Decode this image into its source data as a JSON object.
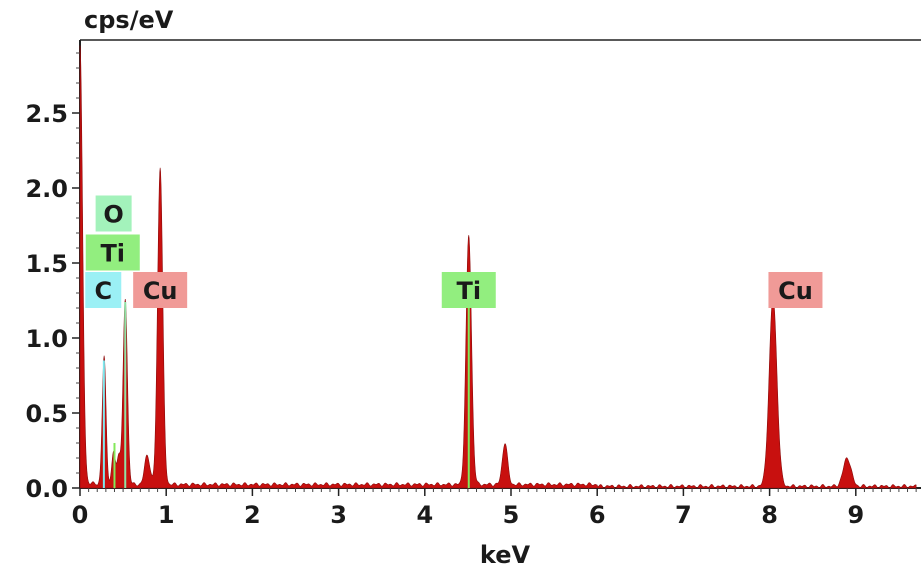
{
  "chart_data": {
    "type": "area",
    "title": "",
    "ylabel": "cps/eV",
    "xlabel": "keV",
    "xlim": [
      0,
      9.7
    ],
    "ylim": [
      0,
      2.95
    ],
    "xticks": [
      0,
      1,
      2,
      3,
      4,
      5,
      6,
      7,
      8,
      9
    ],
    "xtick_labels": [
      "0",
      "1",
      "2",
      "3",
      "4",
      "5",
      "6",
      "7",
      "8",
      "9"
    ],
    "yticks": [
      0,
      0.5,
      1.0,
      1.5,
      2.0,
      2.5
    ],
    "ytick_labels": [
      "0.0",
      "0.5",
      "1.0",
      "1.5",
      "2.0",
      "2.5"
    ],
    "spectrum_color": "#c8100f",
    "baseline": 0.03,
    "peaks": [
      {
        "x": 0.0,
        "y": 2.93,
        "width": 0.03
      },
      {
        "x": 0.28,
        "y": 0.85,
        "width": 0.022
      },
      {
        "x": 0.39,
        "y": 0.22,
        "width": 0.02
      },
      {
        "x": 0.45,
        "y": 0.2,
        "width": 0.02
      },
      {
        "x": 0.525,
        "y": 1.24,
        "width": 0.025
      },
      {
        "x": 0.78,
        "y": 0.2,
        "width": 0.03
      },
      {
        "x": 0.93,
        "y": 2.12,
        "width": 0.03
      },
      {
        "x": 4.51,
        "y": 1.66,
        "width": 0.032
      },
      {
        "x": 4.93,
        "y": 0.28,
        "width": 0.03
      },
      {
        "x": 8.04,
        "y": 1.26,
        "width": 0.045
      },
      {
        "x": 8.9,
        "y": 0.19,
        "width": 0.045
      }
    ],
    "element_lines": [
      {
        "element": "C",
        "x": 0.277,
        "color": "#7fe8ee"
      },
      {
        "element": "O",
        "x": 0.525,
        "color": "#8fe3a6"
      },
      {
        "element": "Ti",
        "x": 0.4,
        "color": "#83e85a"
      },
      {
        "element": "Ti",
        "x": 4.51,
        "color": "#83e85a"
      }
    ],
    "element_labels": [
      {
        "text": "O",
        "x": 0.39,
        "y": 1.83,
        "color": "#a3f2bb"
      },
      {
        "text": "Ti",
        "x": 0.38,
        "y": 1.57,
        "color": "#92ee7f"
      },
      {
        "text": "C",
        "x": 0.27,
        "y": 1.32,
        "color": "#9bf0f5"
      },
      {
        "text": "Cu",
        "x": 0.93,
        "y": 1.32,
        "color": "#f09a97"
      },
      {
        "text": "Ti",
        "x": 4.51,
        "y": 1.32,
        "color": "#92ee7f"
      },
      {
        "text": "Cu",
        "x": 8.3,
        "y": 1.32,
        "color": "#f09a97"
      }
    ]
  }
}
